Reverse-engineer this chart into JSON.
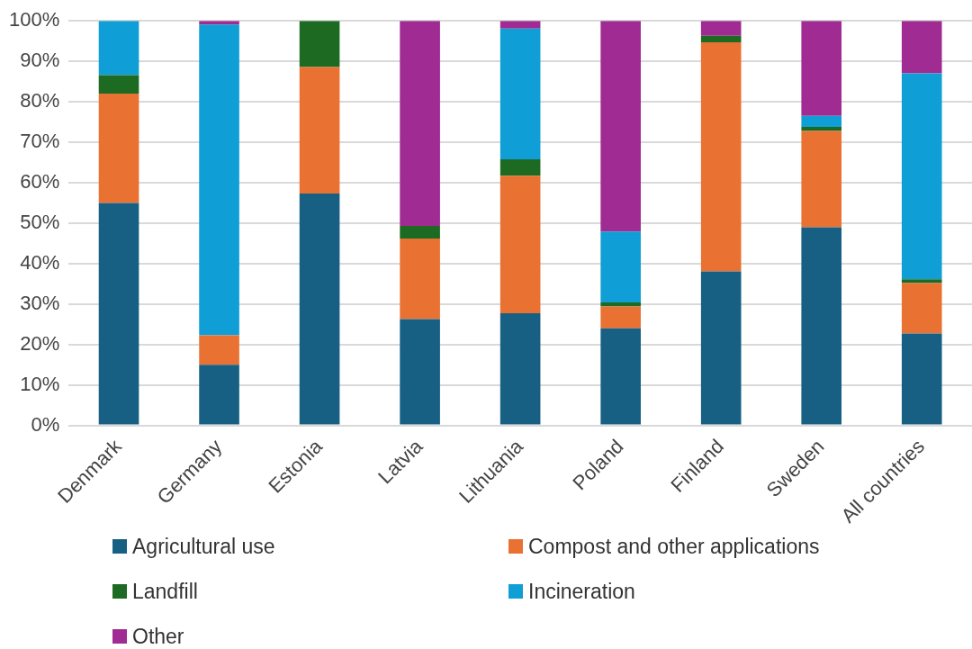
{
  "chart_data": {
    "type": "bar",
    "stacked": true,
    "categories": [
      "Denmark",
      "Germany",
      "Estonia",
      "Latvia",
      "Lithuania",
      "Poland",
      "Finland",
      "Sweden",
      "All countries"
    ],
    "series": [
      {
        "name": "Agricultural use",
        "color": "#176084",
        "values": [
          55,
          15,
          57.3,
          26.3,
          27.7,
          24,
          38.1,
          49,
          22.7
        ]
      },
      {
        "name": "Compost and other applications",
        "color": "#e97132",
        "values": [
          27,
          7.3,
          31.3,
          19.9,
          34,
          5.4,
          56.6,
          23.8,
          12.5
        ]
      },
      {
        "name": "Landfill",
        "color": "#1d6b23",
        "values": [
          4.6,
          0,
          11.4,
          3.1,
          4.1,
          1,
          1.6,
          1,
          0.9
        ]
      },
      {
        "name": "Incineration",
        "color": "#0f9ed5",
        "values": [
          13.4,
          76.8,
          0,
          0,
          32.3,
          17.5,
          0,
          2.7,
          50.9
        ]
      },
      {
        "name": "Other",
        "color": "#a02b93",
        "values": [
          0,
          0.9,
          0,
          50.7,
          1.9,
          52.1,
          3.7,
          23.5,
          13
        ]
      }
    ],
    "ylim": [
      0,
      100
    ],
    "yticks": [
      {
        "value": 0,
        "label": "0%"
      },
      {
        "value": 10,
        "label": "10%"
      },
      {
        "value": 20,
        "label": "20%"
      },
      {
        "value": 30,
        "label": "30%"
      },
      {
        "value": 40,
        "label": "40%"
      },
      {
        "value": 50,
        "label": "50%"
      },
      {
        "value": 60,
        "label": "60%"
      },
      {
        "value": 70,
        "label": "70%"
      },
      {
        "value": 80,
        "label": "80%"
      },
      {
        "value": 90,
        "label": "90%"
      },
      {
        "value": 100,
        "label": "100%"
      }
    ],
    "grid": "y",
    "legend": "bottom"
  }
}
